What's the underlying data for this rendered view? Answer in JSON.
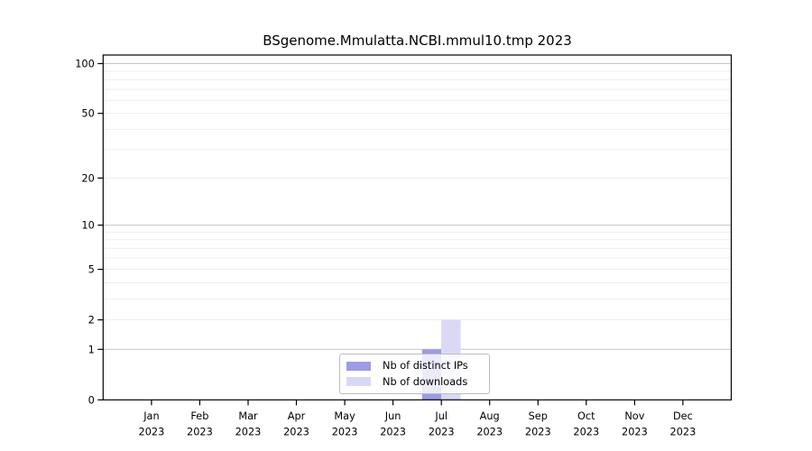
{
  "title": "BSgenome.Mmulatta.NCBI.mmul10.tmp 2023",
  "legend": {
    "items": [
      {
        "label": "Nb of distinct IPs",
        "color": "#9b9be7"
      },
      {
        "label": "Nb of downloads",
        "color": "#d9d9f6"
      }
    ]
  },
  "chart_data": {
    "type": "bar",
    "title": "BSgenome.Mmulatta.NCBI.mmul10.tmp 2023",
    "categories": [
      "Jan",
      "Feb",
      "Mar",
      "Apr",
      "May",
      "Jun",
      "Jul",
      "Aug",
      "Sep",
      "Oct",
      "Nov",
      "Dec"
    ],
    "year_label": "2023",
    "series": [
      {
        "name": "Nb of distinct IPs",
        "color": "#9b9be7",
        "values": [
          0,
          0,
          0,
          0,
          0,
          0,
          1,
          0,
          0,
          0,
          0,
          0
        ]
      },
      {
        "name": "Nb of downloads",
        "color": "#d9d9f6",
        "values": [
          0,
          0,
          0,
          0,
          0,
          0,
          2,
          0,
          0,
          0,
          0,
          0
        ]
      }
    ],
    "xlabel": "",
    "ylabel": "",
    "yscale": "log1p",
    "ylim": [
      0,
      113
    ],
    "yticks": [
      0,
      1,
      2,
      5,
      10,
      20,
      50,
      100
    ],
    "grid": {
      "major_values": [
        1,
        10,
        100
      ],
      "minor_values": [
        2,
        3,
        4,
        5,
        6,
        7,
        8,
        9,
        20,
        30,
        40,
        50,
        60,
        70,
        80,
        90
      ],
      "major_color": "#c6c6c6",
      "minor_color": "#ececec"
    },
    "legend_position": "lower center",
    "axis_color": "#000000",
    "text_color": "#000000",
    "bar_align": "tick-split"
  }
}
